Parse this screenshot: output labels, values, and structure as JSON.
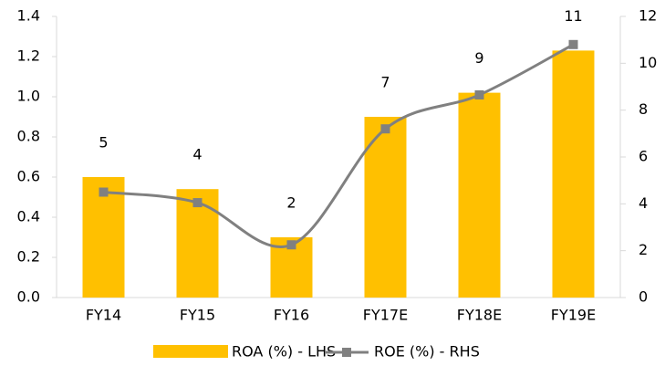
{
  "chart_data": {
    "type": "bar-line",
    "categories": [
      "FY14",
      "FY15",
      "FY16",
      "FY17E",
      "FY18E",
      "FY19E"
    ],
    "series": [
      {
        "name": "ROA (%) - LHS",
        "type": "bar",
        "color": "#ffc000",
        "values": [
          0.6,
          0.54,
          0.3,
          0.9,
          1.02,
          1.23
        ]
      },
      {
        "name": "ROE (%) - RHS",
        "type": "line",
        "axis": "y2",
        "color": "#808080",
        "values": [
          4.5,
          4.05,
          2.25,
          7.2,
          8.65,
          10.8
        ],
        "value_labels": [
          "5",
          "4",
          "2",
          "7",
          "9",
          "11"
        ]
      }
    ],
    "ylim": [
      0,
      1.4
    ],
    "yticks": [
      {
        "value": 0,
        "label": "0.0"
      },
      0.2,
      0.4,
      0.6,
      0.8,
      {
        "value": 1,
        "label": "1.0"
      },
      1.2,
      1.4
    ],
    "y2lim": [
      0,
      12
    ],
    "y2ticks": [
      0,
      2,
      4,
      6,
      8,
      10,
      12
    ],
    "legend": "bottom"
  }
}
